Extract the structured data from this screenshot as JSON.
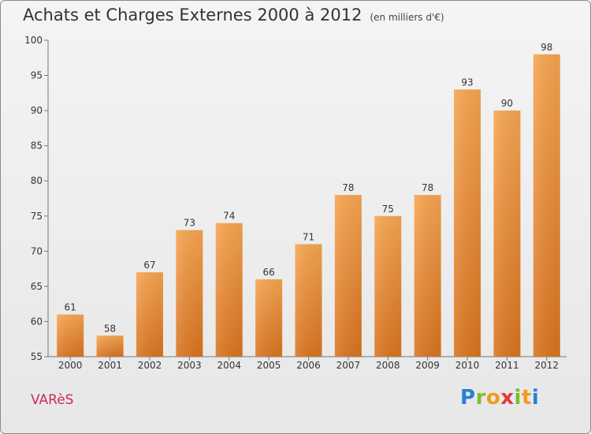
{
  "chart_data": {
    "type": "bar",
    "title": "Achats et Charges Externes 2000 à 2012",
    "subtitle": "(en milliers d'€)",
    "categories": [
      "2000",
      "2001",
      "2002",
      "2003",
      "2004",
      "2005",
      "2006",
      "2007",
      "2008",
      "2009",
      "2010",
      "2011",
      "2012"
    ],
    "values": [
      61,
      58,
      67,
      73,
      74,
      66,
      71,
      78,
      75,
      78,
      93,
      90,
      98
    ],
    "ylim": [
      55,
      100
    ],
    "yticks": [
      55,
      60,
      65,
      70,
      75,
      80,
      85,
      90,
      95,
      100
    ],
    "grid": false,
    "bar_color": "#f39a3c"
  },
  "footer": {
    "commune": "VARèS",
    "logo": "Proxiti"
  }
}
